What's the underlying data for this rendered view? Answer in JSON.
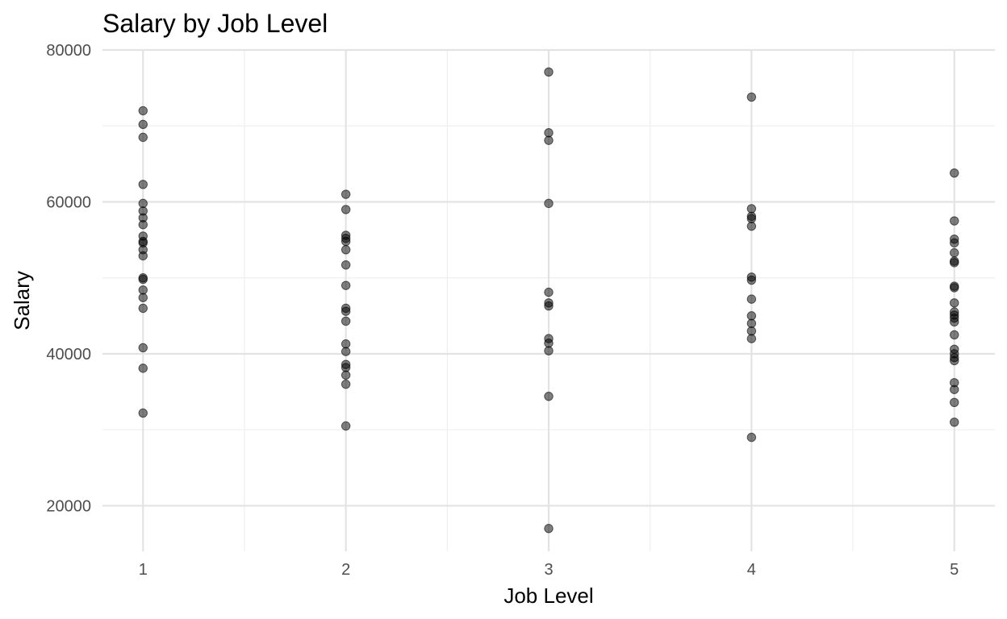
{
  "chart_data": {
    "type": "scatter",
    "title": "Salary by Job Level",
    "xlabel": "Job Level",
    "ylabel": "Salary",
    "xlim": [
      0.8,
      5.2
    ],
    "ylim": [
      14000,
      80000
    ],
    "x_ticks": [
      "1",
      "2",
      "3",
      "4",
      "5"
    ],
    "y_ticks": [
      "20000",
      "40000",
      "60000",
      "80000"
    ],
    "grid": true,
    "legend": "none",
    "point_color": "#000000",
    "points": [
      {
        "x": 1,
        "y": 72000
      },
      {
        "x": 1,
        "y": 70200
      },
      {
        "x": 1,
        "y": 68500
      },
      {
        "x": 1,
        "y": 62300
      },
      {
        "x": 1,
        "y": 59800
      },
      {
        "x": 1,
        "y": 58800
      },
      {
        "x": 1,
        "y": 57900
      },
      {
        "x": 1,
        "y": 57000
      },
      {
        "x": 1,
        "y": 55500
      },
      {
        "x": 1,
        "y": 54800
      },
      {
        "x": 1,
        "y": 54600
      },
      {
        "x": 1,
        "y": 53700
      },
      {
        "x": 1,
        "y": 52900
      },
      {
        "x": 1,
        "y": 50000
      },
      {
        "x": 1,
        "y": 49800
      },
      {
        "x": 1,
        "y": 48400
      },
      {
        "x": 1,
        "y": 47400
      },
      {
        "x": 1,
        "y": 46000
      },
      {
        "x": 1,
        "y": 40800
      },
      {
        "x": 1,
        "y": 38100
      },
      {
        "x": 1,
        "y": 32200
      },
      {
        "x": 2,
        "y": 61000
      },
      {
        "x": 2,
        "y": 59000
      },
      {
        "x": 2,
        "y": 55600
      },
      {
        "x": 2,
        "y": 55200
      },
      {
        "x": 2,
        "y": 54800
      },
      {
        "x": 2,
        "y": 53700
      },
      {
        "x": 2,
        "y": 51700
      },
      {
        "x": 2,
        "y": 49000
      },
      {
        "x": 2,
        "y": 46000
      },
      {
        "x": 2,
        "y": 45600
      },
      {
        "x": 2,
        "y": 44300
      },
      {
        "x": 2,
        "y": 41300
      },
      {
        "x": 2,
        "y": 40300
      },
      {
        "x": 2,
        "y": 38600
      },
      {
        "x": 2,
        "y": 38200
      },
      {
        "x": 2,
        "y": 37200
      },
      {
        "x": 2,
        "y": 36000
      },
      {
        "x": 2,
        "y": 30500
      },
      {
        "x": 3,
        "y": 77100
      },
      {
        "x": 3,
        "y": 69100
      },
      {
        "x": 3,
        "y": 68100
      },
      {
        "x": 3,
        "y": 59800
      },
      {
        "x": 3,
        "y": 48100
      },
      {
        "x": 3,
        "y": 46700
      },
      {
        "x": 3,
        "y": 46300
      },
      {
        "x": 3,
        "y": 42000
      },
      {
        "x": 3,
        "y": 41400
      },
      {
        "x": 3,
        "y": 40400
      },
      {
        "x": 3,
        "y": 34400
      },
      {
        "x": 3,
        "y": 17000
      },
      {
        "x": 4,
        "y": 73800
      },
      {
        "x": 4,
        "y": 59100
      },
      {
        "x": 4,
        "y": 58100
      },
      {
        "x": 4,
        "y": 57800
      },
      {
        "x": 4,
        "y": 56800
      },
      {
        "x": 4,
        "y": 50100
      },
      {
        "x": 4,
        "y": 49700
      },
      {
        "x": 4,
        "y": 47200
      },
      {
        "x": 4,
        "y": 45000
      },
      {
        "x": 4,
        "y": 44000
      },
      {
        "x": 4,
        "y": 43000
      },
      {
        "x": 4,
        "y": 42000
      },
      {
        "x": 4,
        "y": 29000
      },
      {
        "x": 5,
        "y": 63800
      },
      {
        "x": 5,
        "y": 57500
      },
      {
        "x": 5,
        "y": 55100
      },
      {
        "x": 5,
        "y": 54600
      },
      {
        "x": 5,
        "y": 53300
      },
      {
        "x": 5,
        "y": 52200
      },
      {
        "x": 5,
        "y": 52000
      },
      {
        "x": 5,
        "y": 48900
      },
      {
        "x": 5,
        "y": 48700
      },
      {
        "x": 5,
        "y": 46700
      },
      {
        "x": 5,
        "y": 45500
      },
      {
        "x": 5,
        "y": 45100
      },
      {
        "x": 5,
        "y": 44700
      },
      {
        "x": 5,
        "y": 44200
      },
      {
        "x": 5,
        "y": 42500
      },
      {
        "x": 5,
        "y": 40600
      },
      {
        "x": 5,
        "y": 40000
      },
      {
        "x": 5,
        "y": 39500
      },
      {
        "x": 5,
        "y": 39100
      },
      {
        "x": 5,
        "y": 36200
      },
      {
        "x": 5,
        "y": 35300
      },
      {
        "x": 5,
        "y": 33600
      },
      {
        "x": 5,
        "y": 31000
      }
    ]
  }
}
